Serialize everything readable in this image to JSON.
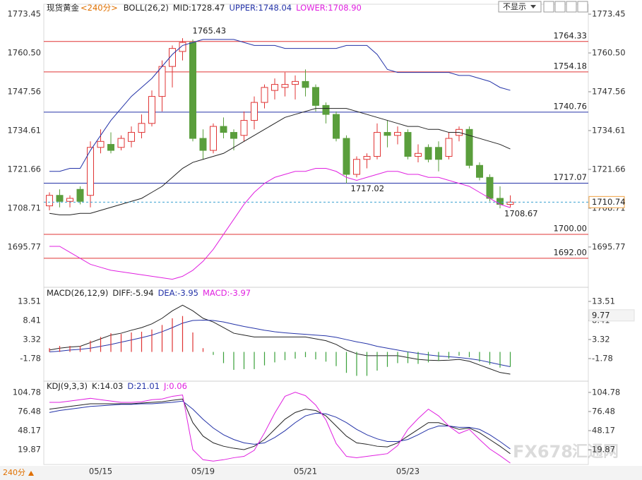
{
  "chart_data": [
    {
      "type": "candlestick",
      "symbol": "现货黄金",
      "period": "<240分>",
      "title": "BOLL(26,2)",
      "x": [
        null,
        null,
        null,
        null,
        null,
        "05/15",
        null,
        null,
        null,
        null,
        null,
        null,
        null,
        null,
        null,
        "05/19",
        null,
        null,
        null,
        null,
        null,
        null,
        null,
        null,
        null,
        "05/21",
        null,
        null,
        null,
        null,
        null,
        null,
        null,
        null,
        null,
        "05/23",
        null,
        null,
        null,
        null,
        null,
        null,
        null,
        null,
        null,
        null
      ],
      "open": [
        1709.5,
        1713,
        1711,
        1715,
        1713,
        1729,
        1730,
        1729,
        1731,
        1734,
        1737,
        1746,
        1756,
        1761,
        1764,
        1732,
        1728,
        1736,
        1734,
        1733,
        1738,
        1744,
        1748,
        1749,
        1750,
        1751,
        1749,
        1743,
        1740,
        1732,
        1720,
        1725,
        1726,
        1734,
        1733,
        1734,
        1726,
        1729,
        1729,
        1726,
        1733,
        1735,
        1723,
        1719,
        1712,
        1710
      ],
      "high": [
        1714,
        1715,
        1713,
        1716,
        1731,
        1735,
        1734,
        1733,
        1736,
        1740,
        1748,
        1758,
        1763,
        1765.43,
        1765,
        1735,
        1737,
        1739,
        1735,
        1741,
        1746,
        1750,
        1752,
        1754,
        1753,
        1755,
        1750,
        1744,
        1741,
        1733,
        1726,
        1727,
        1737,
        1738,
        1736,
        1735,
        1730,
        1730,
        1731,
        1734,
        1736,
        1736,
        1724,
        1720,
        1716,
        1713
      ],
      "low": [
        1708,
        1709,
        1709,
        1710,
        1709,
        1727,
        1727,
        1728,
        1729,
        1732,
        1736,
        1741,
        1749,
        1758,
        1731,
        1725,
        1727,
        1732,
        1728,
        1731,
        1735,
        1742,
        1745,
        1746,
        1745,
        1746,
        1741,
        1737,
        1731,
        1717.02,
        1719,
        1722,
        1725,
        1729,
        1730,
        1725,
        1724,
        1724,
        1721,
        1725,
        1731,
        1722,
        1718,
        1711,
        1708.67,
        1709
      ],
      "close": [
        1713,
        1711,
        1712,
        1711,
        1729,
        1731,
        1728,
        1732,
        1734,
        1737,
        1746,
        1756,
        1762,
        1764,
        1732,
        1728,
        1736,
        1734,
        1732,
        1738,
        1744,
        1749,
        1750,
        1750,
        1751,
        1749,
        1743,
        1740,
        1732,
        1720,
        1725,
        1726,
        1734,
        1733,
        1734,
        1726,
        1727,
        1725,
        1725,
        1732,
        1735,
        1723,
        1719,
        1712,
        1710,
        1710.74
      ],
      "up_color": "#e03434",
      "down_color": "#5a9e3c",
      "series": [
        {
          "name": "MID:1728.47",
          "color": "#222222",
          "values": [
            1707,
            1706.5,
            1706.5,
            1707,
            1707,
            1708,
            1709,
            1710,
            1711,
            1712,
            1714,
            1716,
            1719,
            1722,
            1724,
            1725,
            1726,
            1727,
            1729,
            1731,
            1733,
            1735,
            1737,
            1739,
            1740,
            1741,
            1742,
            1742,
            1742,
            1742,
            1741,
            1740,
            1739,
            1738,
            1737,
            1736,
            1736,
            1735,
            1735,
            1734,
            1734,
            1733,
            1732,
            1731,
            1730,
            1728.47
          ]
        },
        {
          "name": "UPPER:1748.04",
          "color": "#2433a8",
          "values": [
            1721,
            1721,
            1722,
            1722,
            1728,
            1733,
            1738,
            1742,
            1746,
            1749,
            1752,
            1756,
            1760,
            1763,
            1764,
            1765,
            1765,
            1765,
            1765,
            1764,
            1763,
            1763,
            1763,
            1762,
            1762,
            1762,
            1762,
            1762,
            1762,
            1763,
            1763,
            1763,
            1760,
            1755,
            1754,
            1754,
            1754,
            1754,
            1754,
            1754,
            1753,
            1753,
            1752,
            1751,
            1749,
            1748.04
          ]
        },
        {
          "name": "LOWER:1708.90",
          "color": "#e020e0",
          "values": [
            1696,
            1696,
            1694,
            1692,
            1690,
            1689,
            1688,
            1687.5,
            1687,
            1686.5,
            1686,
            1685.5,
            1685,
            1686,
            1688,
            1691,
            1695,
            1700,
            1705,
            1710,
            1714,
            1717,
            1719,
            1720,
            1721,
            1721,
            1722,
            1722,
            1721,
            1719,
            1718,
            1719,
            1720,
            1721,
            1721,
            1720,
            1720,
            1719,
            1719,
            1718,
            1717,
            1716,
            1714,
            1712,
            1710,
            1708.9
          ]
        }
      ],
      "hlines": [
        {
          "value": 1764.33,
          "color": "#e03434"
        },
        {
          "value": 1754.18,
          "color": "#e03434"
        },
        {
          "value": 1740.76,
          "color": "#2433a8"
        },
        {
          "value": 1717.07,
          "color": "#2433a8"
        },
        {
          "value": 1700,
          "label": "1700.00",
          "color": "#e03434"
        },
        {
          "value": 1692,
          "label": "1692.00",
          "color": "#e03434"
        }
      ],
      "annotations": [
        1765.43,
        1717.02,
        1708.67
      ],
      "last": 1710.74,
      "ylim": [
        1682.8,
        1776.28
      ],
      "yticks": [
        1773.45,
        {
          "value": 1760.5,
          "label": "1760.50"
        },
        1747.56,
        1734.61,
        1721.66,
        1708.71,
        1695.77
      ]
    },
    {
      "type": "line",
      "title": "MACD(26,12,9)",
      "series": [
        {
          "name": "DIFF:-5.94",
          "color": "#222222",
          "values": [
            0.5,
            1,
            1.3,
            1.5,
            2.5,
            3.5,
            4.5,
            5,
            5.8,
            6.5,
            7.5,
            9,
            11,
            12.5,
            11,
            9,
            8,
            6.5,
            5,
            4.5,
            4,
            4,
            4,
            4,
            4,
            4,
            3.5,
            3,
            2,
            0.5,
            -0.5,
            -1,
            -1,
            -1,
            -1,
            -1.5,
            -2,
            -2.2,
            -2.3,
            -2.2,
            -2,
            -2.5,
            -3.5,
            -4.5,
            -5.5,
            -5.94
          ]
        },
        {
          "name": "DEA:-3.95",
          "color": "#2433a8",
          "values": [
            0,
            0.2,
            0.5,
            0.7,
            1,
            1.5,
            2,
            2.6,
            3.2,
            3.8,
            4.5,
            5.4,
            6.5,
            7.7,
            8.4,
            8.5,
            8.4,
            8,
            7.4,
            6.8,
            6.3,
            5.8,
            5.4,
            5.1,
            4.9,
            4.7,
            4.5,
            4.3,
            3.9,
            3.3,
            2.7,
            2.2,
            1.5,
            1,
            0.5,
            0,
            -0.4,
            -0.8,
            -1.1,
            -1.3,
            -1.5,
            -1.8,
            -2.2,
            -2.8,
            -3.4,
            -3.95
          ]
        },
        {
          "name": "MACD:-3.97",
          "color": "#e020e0",
          "style": "bar",
          "colors": [
            "#e03434",
            "#3aa03a"
          ],
          "values": [
            1,
            1.6,
            1.6,
            1.6,
            3,
            4,
            5,
            4.8,
            5.2,
            5.4,
            6,
            7.2,
            9,
            9.6,
            5.2,
            1,
            -0.8,
            -3,
            -4.8,
            -4.6,
            -4.6,
            -3.6,
            -2.8,
            -2.2,
            -1.8,
            -1.4,
            -2,
            -2.6,
            -3.8,
            -5.6,
            -6.4,
            -6.4,
            -5,
            -4,
            -3,
            -3,
            -3.2,
            -2.8,
            -2.4,
            -1.8,
            -1,
            -1.4,
            -2.6,
            -3.4,
            -4.2,
            -3.97
          ]
        }
      ],
      "marker": 9.77,
      "ylim": [
        -7.45,
        14.83
      ],
      "yticks": [
        13.51,
        8.41,
        3.32,
        -1.78
      ]
    },
    {
      "type": "line",
      "title": "KDJ(9,3,3)",
      "series": [
        {
          "name": "K:14.03",
          "color": "#222222",
          "values": [
            80,
            82,
            84,
            86,
            88,
            88,
            88,
            88,
            88,
            89,
            90,
            91,
            93,
            95,
            60,
            40,
            30,
            25,
            22,
            20,
            25,
            35,
            50,
            65,
            75,
            80,
            78,
            70,
            55,
            40,
            30,
            28,
            25,
            24,
            30,
            40,
            50,
            60,
            60,
            55,
            50,
            52,
            45,
            35,
            25,
            14.03
          ]
        },
        {
          "name": "D:21.01",
          "color": "#2433a8",
          "values": [
            75,
            78,
            80,
            82,
            84,
            85,
            86,
            87,
            87,
            88,
            88,
            89,
            90,
            92,
            80,
            65,
            52,
            42,
            35,
            30,
            28,
            30,
            38,
            48,
            60,
            70,
            74,
            73,
            68,
            60,
            50,
            42,
            36,
            32,
            32,
            35,
            42,
            50,
            55,
            55,
            53,
            53,
            50,
            42,
            32,
            21.01
          ]
        },
        {
          "name": "J:0.06",
          "color": "#e020e0",
          "values": [
            90,
            90,
            92,
            94,
            96,
            94,
            92,
            90,
            90,
            91,
            94,
            95,
            99,
            101,
            20,
            5,
            3,
            5,
            8,
            10,
            19,
            45,
            74,
            99,
            105,
            100,
            86,
            64,
            29,
            10,
            8,
            10,
            12,
            14,
            26,
            50,
            66,
            80,
            70,
            55,
            44,
            50,
            35,
            21,
            11,
            0.06
          ]
        }
      ],
      "ylim": [
        -2,
        116.2
      ],
      "yticks": [
        104.78,
        76.48,
        48.17,
        19.87
      ]
    }
  ],
  "controls": {
    "hide": "不显示",
    "period": "240分"
  },
  "watermark": {
    "brand": "FX678",
    "name": "汇通网"
  }
}
